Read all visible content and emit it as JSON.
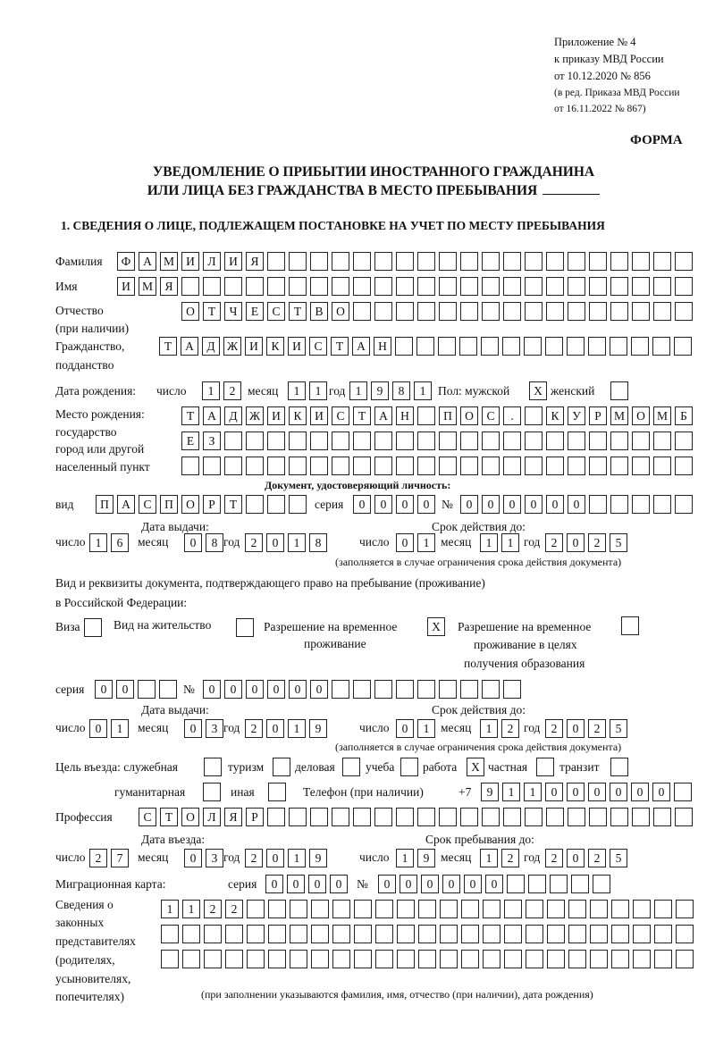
{
  "header": {
    "appendix": "Приложение № 4",
    "order": "к приказу МВД России",
    "order_date": "от 10.12.2020 № 856",
    "amend1": "(в ред. Приказа МВД России",
    "amend2": "от 16.11.2022 № 867)",
    "forma": "ФОРМА"
  },
  "title": {
    "line1": "УВЕДОМЛЕНИЕ О ПРИБЫТИИ ИНОСТРАННОГО ГРАЖДАНИНА",
    "line2": "ИЛИ ЛИЦА БЕЗ ГРАЖДАНСТВА В МЕСТО ПРЕБЫВАНИЯ"
  },
  "section1": "1. СВЕДЕНИЯ О ЛИЦЕ, ПОДЛЕЖАЩЕМ ПОСТАНОВКЕ НА УЧЕТ ПО МЕСТУ ПРЕБЫВАНИЯ",
  "labels": {
    "surname": "Фамилия",
    "name": "Имя",
    "patronymic": "Отчество",
    "patronymic_note": "(при наличии)",
    "citizenship1": "Гражданство,",
    "citizenship2": "подданство",
    "birth_date": "Дата рождения:",
    "day": "число",
    "month": "месяц",
    "year": "год",
    "sex_male": "Пол: мужской",
    "sex_female": "женский",
    "birthplace1": "Место рождения:",
    "birthplace2": "государство",
    "birthplace3": "город или другой",
    "birthplace4": "населенный пункт",
    "id_doc_heading": "Документ, удостоверяющий личность:",
    "kind": "вид",
    "series": "серия",
    "number": "№",
    "issue_date": "Дата выдачи:",
    "valid_until": "Срок действия до:",
    "validity_note": "(заполняется в случае ограничения срока действия документа)",
    "right_doc1": "Вид и реквизиты документа, подтверждающего право на пребывание (проживание)",
    "right_doc2": "в Российской Федерации:",
    "visa": "Виза",
    "residence_permit": "Вид на жительство",
    "temp_residence1": "Разрешение на временное",
    "temp_residence2": "проживание",
    "temp_edu1": "Разрешение на временное",
    "temp_edu2": "проживание в целях",
    "temp_edu3": "получения образования",
    "purpose": "Цель въезда: служебная",
    "tourism": "туризм",
    "business": "деловая",
    "study": "учеба",
    "work": "работа",
    "private": "частная",
    "transit": "транзит",
    "humanitarian": "гуманитарная",
    "other": "иная",
    "phone": "Телефон (при наличии)",
    "phone_prefix": "+7",
    "profession": "Профессия",
    "entry_date": "Дата въезда:",
    "stay_until": "Срок пребывания до:",
    "migration_card": "Миграционная карта:",
    "reps1": "Сведения о",
    "reps2": "законных",
    "reps3": "представителях",
    "reps4": "(родителях,",
    "reps5": "усыновителях,",
    "reps6": "попечителях)",
    "reps_note": "(при заполнении указываются фамилия, имя, отчество (при наличии), дата рождения)"
  },
  "person": {
    "surname": "ФАМИЛИЯ",
    "name": "ИМЯ",
    "patronymic": "ОТЧЕСТВО",
    "citizenship": "ТАДЖИКИСТАН",
    "birth_day": "12",
    "birth_month": "11",
    "birth_year": "1981",
    "sex_male": "X",
    "sex_female": "",
    "birthplace_line1": "ТАДЖИКИСТАН ПОС. КУРМОМБ",
    "birthplace_line2": "ЕЗ",
    "birthplace_line3": "",
    "id_kind": "ПАСПОРТ",
    "id_series": "0000",
    "id_number": "000000",
    "id_issue_day": "16",
    "id_issue_month": "08",
    "id_issue_year": "2018",
    "id_valid_day": "01",
    "id_valid_month": "11",
    "id_valid_year": "2025",
    "visa": "",
    "residence_permit": "",
    "temp_residence": "X",
    "temp_edu": "",
    "rd_series": "00",
    "rd_number": "000000",
    "rd_issue_day": "01",
    "rd_issue_month": "03",
    "rd_issue_year": "2019",
    "rd_valid_day": "01",
    "rd_valid_month": "12",
    "rd_valid_year": "2025",
    "purpose_official": "",
    "purpose_tourism": "",
    "purpose_business": "",
    "purpose_study": "",
    "purpose_work": "X",
    "purpose_private": "",
    "purpose_transit": "",
    "purpose_humanitarian": "",
    "purpose_other": "",
    "phone": "911000000",
    "profession": "СТОЛЯР",
    "entry_day": "27",
    "entry_month": "03",
    "entry_year": "2019",
    "stay_day": "19",
    "stay_month": "12",
    "stay_year": "2025",
    "mc_series": "0000",
    "mc_number": "000000",
    "reps_line1": "1122",
    "reps_line2": "",
    "reps_line3": ""
  }
}
